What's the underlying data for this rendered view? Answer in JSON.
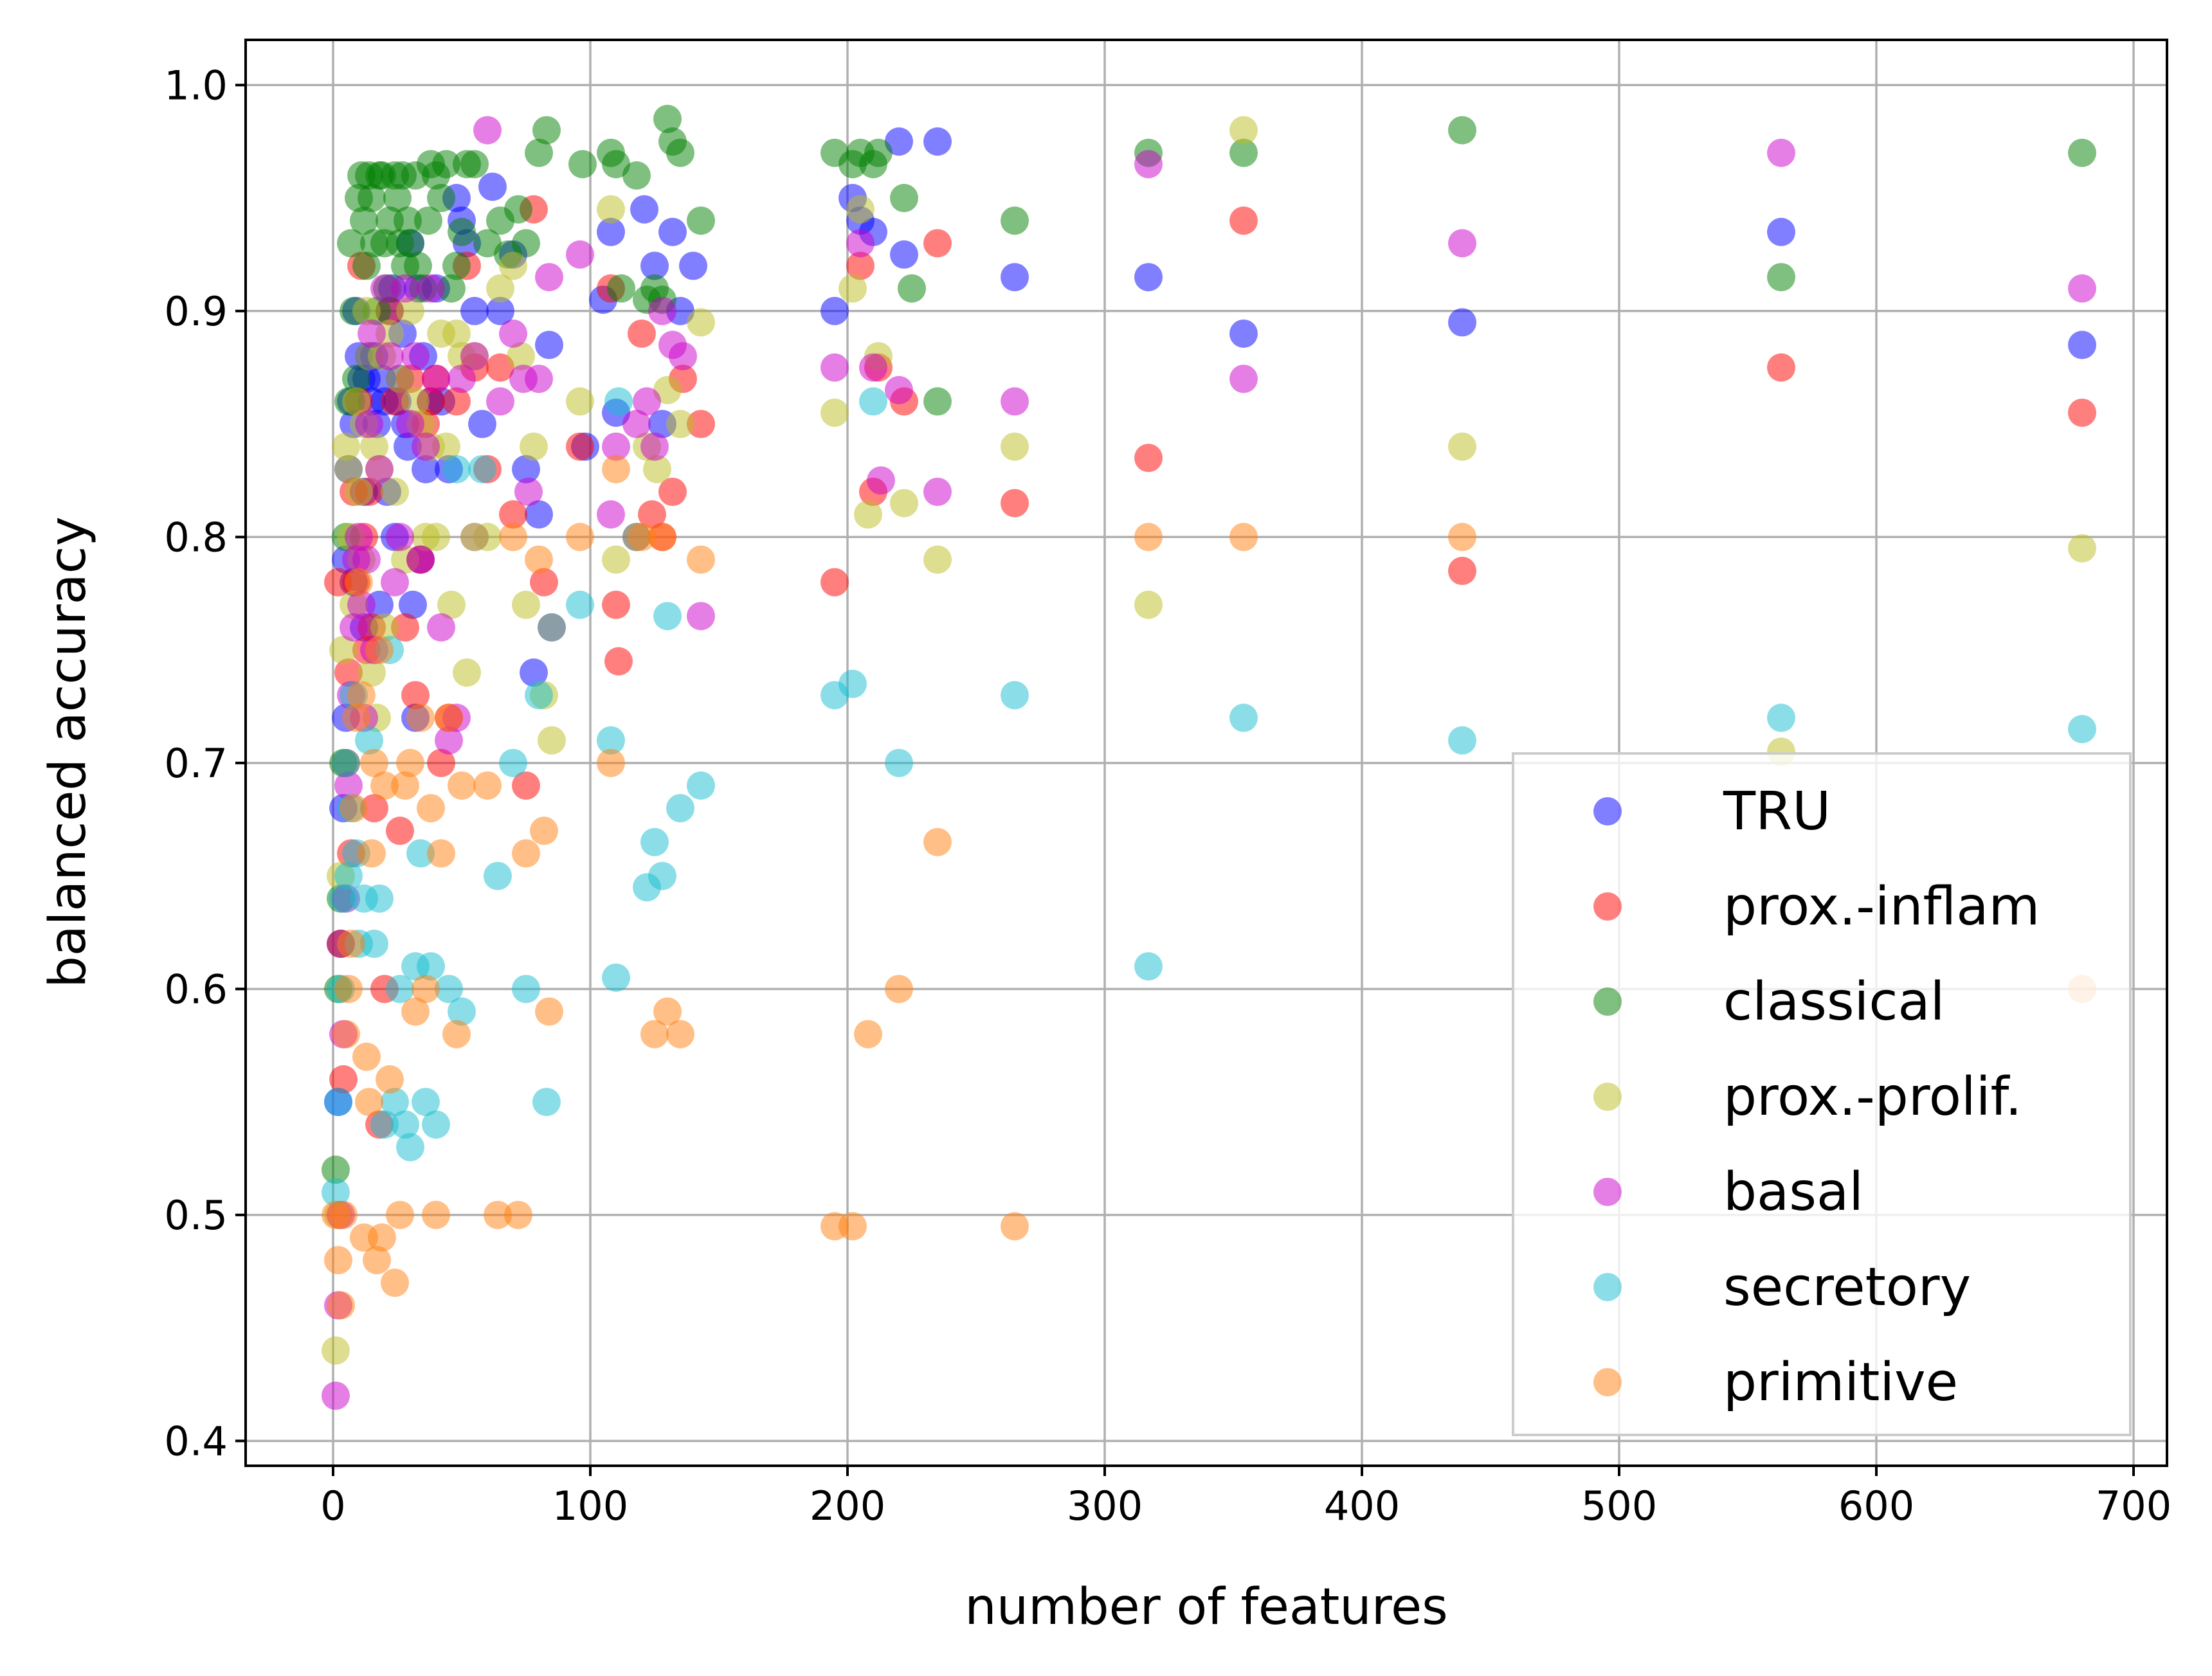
{
  "chart_data": {
    "type": "scatter",
    "title": "",
    "xlabel": "number of features",
    "ylabel": "balanced accuracy",
    "xlim": [
      -34,
      713
    ],
    "ylim": [
      0.389,
      1.02
    ],
    "xticks": [
      0,
      100,
      200,
      300,
      400,
      500,
      600,
      700
    ],
    "yticks": [
      0.4,
      0.5,
      0.6,
      0.7,
      0.8,
      0.9,
      1.0
    ],
    "xtick_labels": [
      "0",
      "100",
      "200",
      "300",
      "400",
      "500",
      "600",
      "700"
    ],
    "ytick_labels": [
      "0.4",
      "0.5",
      "0.6",
      "0.7",
      "0.8",
      "0.9",
      "1.0"
    ],
    "grid": true,
    "legend_position": "lower-right",
    "series": [
      {
        "name": "TRU",
        "color": "#0000ff",
        "x": [
          2,
          3,
          4,
          5,
          5,
          6,
          7,
          8,
          8,
          9,
          10,
          11,
          12,
          12,
          13,
          14,
          15,
          16,
          17,
          18,
          19,
          20,
          21,
          22,
          23,
          24,
          25,
          26,
          27,
          28,
          29,
          30,
          31,
          32,
          33,
          34,
          35,
          36,
          38,
          40,
          42,
          45,
          48,
          50,
          52,
          55,
          58,
          62,
          65,
          70,
          75,
          78,
          80,
          84,
          98,
          105,
          108,
          110,
          118,
          121,
          125,
          128,
          132,
          135,
          140,
          195,
          202,
          205,
          210,
          220,
          222,
          235,
          265,
          317,
          354,
          439,
          563,
          680
        ],
        "y": [
          0.55,
          0.62,
          0.68,
          0.72,
          0.79,
          0.83,
          0.86,
          0.85,
          0.78,
          0.9,
          0.88,
          0.87,
          0.82,
          0.76,
          0.87,
          0.88,
          0.86,
          0.88,
          0.85,
          0.77,
          0.87,
          0.86,
          0.82,
          0.9,
          0.91,
          0.8,
          0.86,
          0.87,
          0.89,
          0.85,
          0.84,
          0.93,
          0.77,
          0.72,
          0.91,
          0.79,
          0.88,
          0.83,
          0.86,
          0.91,
          0.86,
          0.83,
          0.95,
          0.94,
          0.93,
          0.9,
          0.85,
          0.955,
          0.9,
          0.925,
          0.83,
          0.74,
          0.81,
          0.885,
          0.84,
          0.905,
          0.935,
          0.855,
          0.8,
          0.945,
          0.92,
          0.85,
          0.935,
          0.9,
          0.92,
          0.9,
          0.95,
          0.94,
          0.935,
          0.975,
          0.925,
          0.975,
          0.915,
          0.915,
          0.89,
          0.895,
          0.935,
          0.885
        ]
      },
      {
        "name": "prox.-inflam",
        "color": "#ff0000",
        "x": [
          2,
          3,
          4,
          5,
          6,
          7,
          8,
          9,
          10,
          11,
          12,
          13,
          14,
          15,
          16,
          18,
          20,
          22,
          24,
          26,
          28,
          30,
          32,
          34,
          36,
          38,
          40,
          42,
          45,
          48,
          52,
          55,
          60,
          65,
          70,
          75,
          78,
          82,
          85,
          96,
          108,
          110,
          111,
          120,
          124,
          128,
          132,
          136,
          143,
          195,
          205,
          210,
          212,
          222,
          235,
          265,
          317,
          354,
          439,
          563,
          680
        ],
        "y": [
          0.78,
          0.62,
          0.56,
          0.7,
          0.74,
          0.66,
          0.82,
          0.78,
          0.86,
          0.92,
          0.8,
          0.75,
          0.82,
          0.76,
          0.68,
          0.54,
          0.6,
          0.9,
          0.86,
          0.67,
          0.76,
          0.87,
          0.73,
          0.79,
          0.85,
          0.86,
          0.87,
          0.7,
          0.72,
          0.86,
          0.92,
          0.875,
          0.83,
          0.875,
          0.81,
          0.69,
          0.945,
          0.78,
          0.76,
          0.84,
          0.91,
          0.77,
          0.745,
          0.89,
          0.81,
          0.8,
          0.82,
          0.87,
          0.85,
          0.78,
          0.92,
          0.82,
          0.875,
          0.86,
          0.93,
          0.815,
          0.835,
          0.94,
          0.785,
          0.875,
          0.855
        ]
      },
      {
        "name": "classical",
        "color": "#008000",
        "x": [
          1,
          2,
          3,
          4,
          5,
          6,
          7,
          8,
          9,
          10,
          11,
          12,
          13,
          14,
          15,
          16,
          17,
          18,
          19,
          20,
          21,
          22,
          24,
          25,
          26,
          27,
          28,
          29,
          30,
          32,
          33,
          35,
          37,
          38,
          40,
          42,
          44,
          46,
          48,
          50,
          52,
          55,
          60,
          65,
          68,
          72,
          75,
          80,
          83,
          97,
          108,
          110,
          112,
          118,
          122,
          125,
          128,
          130,
          132,
          135,
          143,
          195,
          202,
          205,
          210,
          212,
          222,
          225,
          235,
          265,
          317,
          354,
          439,
          563,
          680
        ],
        "y": [
          0.52,
          0.6,
          0.64,
          0.7,
          0.8,
          0.86,
          0.93,
          0.9,
          0.87,
          0.95,
          0.96,
          0.94,
          0.92,
          0.96,
          0.95,
          0.93,
          0.9,
          0.96,
          0.96,
          0.93,
          0.91,
          0.94,
          0.96,
          0.95,
          0.93,
          0.96,
          0.92,
          0.94,
          0.93,
          0.96,
          0.92,
          0.91,
          0.94,
          0.965,
          0.96,
          0.95,
          0.965,
          0.91,
          0.92,
          0.935,
          0.965,
          0.965,
          0.93,
          0.94,
          0.925,
          0.945,
          0.93,
          0.97,
          0.98,
          0.965,
          0.97,
          0.965,
          0.91,
          0.96,
          0.905,
          0.91,
          0.905,
          0.985,
          0.975,
          0.97,
          0.94,
          0.97,
          0.965,
          0.97,
          0.965,
          0.97,
          0.95,
          0.91,
          0.86,
          0.94,
          0.97,
          0.97,
          0.98,
          0.915,
          0.97
        ]
      },
      {
        "name": "prox.-prolif.",
        "color": "#bcbd22",
        "x": [
          1,
          2,
          3,
          4,
          5,
          6,
          7,
          8,
          9,
          10,
          11,
          12,
          13,
          14,
          15,
          16,
          17,
          18,
          19,
          20,
          22,
          24,
          26,
          28,
          30,
          32,
          34,
          36,
          38,
          40,
          42,
          44,
          46,
          48,
          50,
          52,
          55,
          60,
          65,
          70,
          73,
          75,
          78,
          82,
          85,
          96,
          108,
          110,
          118,
          122,
          126,
          130,
          135,
          143,
          195,
          202,
          205,
          208,
          212,
          222,
          235,
          265,
          317,
          354,
          439,
          563,
          680
        ],
        "y": [
          0.44,
          0.5,
          0.65,
          0.75,
          0.84,
          0.83,
          0.8,
          0.77,
          0.86,
          0.82,
          0.79,
          0.85,
          0.9,
          0.88,
          0.74,
          0.84,
          0.72,
          0.83,
          0.88,
          0.76,
          0.89,
          0.82,
          0.87,
          0.79,
          0.9,
          0.86,
          0.85,
          0.8,
          0.84,
          0.8,
          0.89,
          0.84,
          0.77,
          0.89,
          0.88,
          0.74,
          0.88,
          0.8,
          0.91,
          0.92,
          0.88,
          0.77,
          0.84,
          0.73,
          0.71,
          0.86,
          0.945,
          0.79,
          0.8,
          0.84,
          0.83,
          0.865,
          0.85,
          0.895,
          0.855,
          0.91,
          0.945,
          0.81,
          0.88,
          0.815,
          0.79,
          0.84,
          0.77,
          0.98,
          0.84,
          0.705,
          0.795
        ]
      },
      {
        "name": "basal",
        "color": "#cc00cc",
        "x": [
          1,
          2,
          3,
          4,
          5,
          6,
          7,
          8,
          9,
          10,
          11,
          12,
          13,
          14,
          15,
          16,
          18,
          20,
          22,
          24,
          26,
          28,
          30,
          32,
          34,
          36,
          38,
          40,
          42,
          45,
          48,
          50,
          55,
          60,
          65,
          70,
          74,
          76,
          80,
          84,
          96,
          108,
          110,
          118,
          122,
          125,
          128,
          132,
          136,
          143,
          195,
          205,
          210,
          213,
          220,
          235,
          265,
          317,
          354,
          439,
          563,
          680
        ],
        "y": [
          0.42,
          0.46,
          0.5,
          0.58,
          0.64,
          0.69,
          0.73,
          0.76,
          0.79,
          0.8,
          0.77,
          0.72,
          0.79,
          0.85,
          0.89,
          0.75,
          0.83,
          0.91,
          0.88,
          0.78,
          0.8,
          0.91,
          0.85,
          0.88,
          0.79,
          0.84,
          0.91,
          0.87,
          0.76,
          0.71,
          0.72,
          0.87,
          0.88,
          0.98,
          0.86,
          0.89,
          0.87,
          0.82,
          0.87,
          0.915,
          0.925,
          0.81,
          0.84,
          0.85,
          0.86,
          0.84,
          0.9,
          0.885,
          0.88,
          0.765,
          0.875,
          0.93,
          0.875,
          0.825,
          0.865,
          0.82,
          0.86,
          0.965,
          0.87,
          0.93,
          0.97,
          0.91
        ]
      },
      {
        "name": "secretory",
        "color": "#17becf",
        "x": [
          1,
          2,
          3,
          4,
          5,
          6,
          7,
          8,
          9,
          10,
          12,
          14,
          16,
          18,
          20,
          22,
          24,
          26,
          28,
          30,
          32,
          34,
          36,
          38,
          40,
          45,
          48,
          50,
          55,
          58,
          64,
          70,
          75,
          80,
          83,
          85,
          96,
          108,
          110,
          111,
          122,
          125,
          128,
          130,
          135,
          143,
          195,
          202,
          210,
          220,
          265,
          317,
          354,
          439,
          563,
          680
        ],
        "y": [
          0.51,
          0.55,
          0.6,
          0.64,
          0.7,
          0.65,
          0.68,
          0.73,
          0.66,
          0.62,
          0.64,
          0.71,
          0.62,
          0.64,
          0.54,
          0.75,
          0.55,
          0.6,
          0.54,
          0.53,
          0.61,
          0.66,
          0.55,
          0.61,
          0.54,
          0.6,
          0.83,
          0.59,
          0.8,
          0.83,
          0.65,
          0.7,
          0.6,
          0.73,
          0.55,
          0.76,
          0.77,
          0.71,
          0.605,
          0.86,
          0.645,
          0.665,
          0.65,
          0.765,
          0.68,
          0.69,
          0.73,
          0.735,
          0.86,
          0.7,
          0.73,
          0.61,
          0.72,
          0.71,
          0.72,
          0.715
        ]
      },
      {
        "name": "primitive",
        "color": "#ff7f0e",
        "x": [
          1,
          2,
          3,
          4,
          5,
          6,
          7,
          8,
          9,
          10,
          11,
          12,
          13,
          14,
          15,
          16,
          17,
          18,
          19,
          20,
          22,
          24,
          26,
          28,
          30,
          32,
          34,
          36,
          38,
          40,
          42,
          45,
          48,
          50,
          55,
          60,
          64,
          70,
          72,
          75,
          80,
          82,
          84,
          96,
          108,
          110,
          120,
          125,
          128,
          130,
          135,
          143,
          195,
          202,
          208,
          220,
          235,
          265,
          317,
          354,
          439,
          680
        ],
        "y": [
          0.5,
          0.48,
          0.46,
          0.5,
          0.58,
          0.6,
          0.62,
          0.68,
          0.72,
          0.78,
          0.73,
          0.49,
          0.57,
          0.55,
          0.66,
          0.7,
          0.48,
          0.75,
          0.49,
          0.69,
          0.56,
          0.47,
          0.5,
          0.69,
          0.7,
          0.59,
          0.72,
          0.6,
          0.68,
          0.5,
          0.66,
          0.72,
          0.58,
          0.69,
          0.8,
          0.69,
          0.5,
          0.8,
          0.5,
          0.66,
          0.79,
          0.67,
          0.59,
          0.8,
          0.7,
          0.83,
          0.8,
          0.58,
          0.8,
          0.59,
          0.58,
          0.79,
          0.495,
          0.495,
          0.58,
          0.6,
          0.665,
          0.495,
          0.8,
          0.8,
          0.8,
          0.6
        ]
      }
    ]
  }
}
